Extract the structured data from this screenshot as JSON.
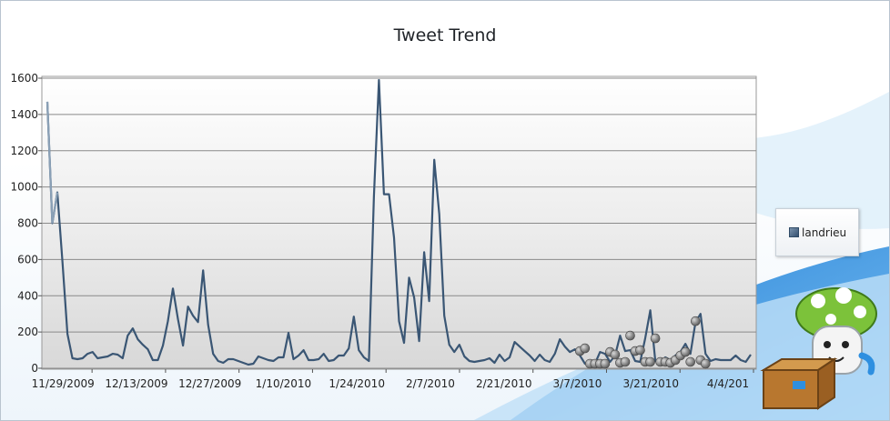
{
  "colors": {
    "line_light": "#8aa0b6",
    "line_dark": "#3a5674",
    "point_fill": "#808080",
    "plot_bg_top": "#ffffff",
    "plot_bg_bottom": "#d8d8d8",
    "grid": "#8a8a8a",
    "accent_blue": "#2e8fe0"
  },
  "icons": {
    "mascot": "mushroom-with-box-mascot-icon",
    "legend_swatch": "series-swatch-icon"
  },
  "chart_data": {
    "type": "line",
    "title": "Tweet Trend",
    "xlabel": "",
    "ylabel": "",
    "ylim": [
      0,
      1600
    ],
    "y_ticks": [
      0,
      200,
      400,
      600,
      800,
      1000,
      1200,
      1400,
      1600
    ],
    "x_tick_labels": [
      "11/29/2009",
      "12/13/2009",
      "12/27/2009",
      "1/10/2010",
      "1/24/2010",
      "2/7/2010",
      "2/21/2010",
      "3/7/2010",
      "3/21/2010",
      "4/4/201"
    ],
    "x_tick_days": [
      8,
      22,
      36,
      50,
      64,
      78,
      92,
      106,
      120,
      134
    ],
    "x_range_days": [
      0,
      134
    ],
    "grid": true,
    "legend_position": "right",
    "series": [
      {
        "name": "landrieu",
        "points": [
          [
            0,
            1470
          ],
          [
            1,
            800
          ],
          [
            2,
            970
          ],
          [
            3,
            590
          ],
          [
            4,
            190
          ],
          [
            5,
            55
          ],
          [
            6,
            50
          ],
          [
            7,
            55
          ],
          [
            8,
            80
          ],
          [
            9,
            90
          ],
          [
            10,
            55
          ],
          [
            11,
            60
          ],
          [
            12,
            65
          ],
          [
            13,
            80
          ],
          [
            14,
            75
          ],
          [
            15,
            55
          ],
          [
            16,
            180
          ],
          [
            17,
            220
          ],
          [
            18,
            160
          ],
          [
            19,
            130
          ],
          [
            20,
            105
          ],
          [
            21,
            45
          ],
          [
            22,
            45
          ],
          [
            23,
            125
          ],
          [
            24,
            260
          ],
          [
            25,
            440
          ],
          [
            26,
            270
          ],
          [
            27,
            125
          ],
          [
            28,
            340
          ],
          [
            29,
            290
          ],
          [
            30,
            255
          ],
          [
            31,
            540
          ],
          [
            32,
            240
          ],
          [
            33,
            80
          ],
          [
            34,
            40
          ],
          [
            35,
            30
          ],
          [
            36,
            50
          ],
          [
            37,
            50
          ],
          [
            38,
            40
          ],
          [
            39,
            30
          ],
          [
            40,
            20
          ],
          [
            41,
            25
          ],
          [
            42,
            65
          ],
          [
            43,
            55
          ],
          [
            44,
            45
          ],
          [
            45,
            40
          ],
          [
            46,
            60
          ],
          [
            47,
            60
          ],
          [
            48,
            195
          ],
          [
            49,
            50
          ],
          [
            50,
            70
          ],
          [
            51,
            100
          ],
          [
            52,
            45
          ],
          [
            53,
            45
          ],
          [
            54,
            50
          ],
          [
            55,
            80
          ],
          [
            56,
            40
          ],
          [
            57,
            45
          ],
          [
            58,
            70
          ],
          [
            59,
            70
          ],
          [
            60,
            110
          ],
          [
            61,
            285
          ],
          [
            62,
            100
          ],
          [
            63,
            60
          ],
          [
            64,
            40
          ],
          [
            65,
            950
          ],
          [
            66,
            1590
          ],
          [
            67,
            960
          ],
          [
            68,
            960
          ],
          [
            69,
            720
          ],
          [
            70,
            260
          ],
          [
            71,
            140
          ],
          [
            72,
            500
          ],
          [
            73,
            390
          ],
          [
            74,
            150
          ],
          [
            75,
            640
          ],
          [
            76,
            370
          ],
          [
            77,
            1150
          ],
          [
            78,
            850
          ],
          [
            79,
            290
          ],
          [
            80,
            130
          ],
          [
            81,
            90
          ],
          [
            82,
            130
          ],
          [
            83,
            65
          ],
          [
            84,
            40
          ],
          [
            85,
            35
          ],
          [
            86,
            40
          ],
          [
            87,
            45
          ],
          [
            88,
            55
          ],
          [
            89,
            30
          ],
          [
            90,
            75
          ],
          [
            91,
            40
          ],
          [
            92,
            60
          ],
          [
            93,
            145
          ],
          [
            94,
            120
          ],
          [
            95,
            95
          ],
          [
            96,
            70
          ],
          [
            97,
            40
          ],
          [
            98,
            75
          ],
          [
            99,
            45
          ],
          [
            100,
            35
          ],
          [
            101,
            80
          ],
          [
            102,
            160
          ],
          [
            103,
            120
          ],
          [
            104,
            90
          ],
          [
            105,
            105
          ],
          [
            106,
            70
          ],
          [
            107,
            25
          ],
          [
            108,
            25
          ],
          [
            109,
            25
          ],
          [
            110,
            90
          ],
          [
            111,
            80
          ],
          [
            112,
            35
          ],
          [
            113,
            70
          ],
          [
            114,
            180
          ],
          [
            115,
            95
          ],
          [
            116,
            100
          ],
          [
            117,
            40
          ],
          [
            118,
            35
          ],
          [
            119,
            165
          ],
          [
            120,
            320
          ],
          [
            121,
            40
          ],
          [
            122,
            35
          ],
          [
            123,
            60
          ],
          [
            124,
            45
          ],
          [
            125,
            70
          ],
          [
            126,
            90
          ],
          [
            127,
            135
          ],
          [
            128,
            80
          ],
          [
            129,
            255
          ],
          [
            130,
            300
          ],
          [
            131,
            80
          ],
          [
            132,
            40
          ],
          [
            133,
            50
          ],
          [
            134,
            45
          ],
          [
            135,
            45
          ],
          [
            136,
            45
          ],
          [
            137,
            70
          ],
          [
            138,
            45
          ],
          [
            139,
            35
          ],
          [
            140,
            75
          ]
        ]
      }
    ],
    "scatter_points": [
      [
        106,
        95
      ],
      [
        107,
        110
      ],
      [
        108,
        25
      ],
      [
        109,
        25
      ],
      [
        110,
        25
      ],
      [
        111,
        25
      ],
      [
        112,
        90
      ],
      [
        113,
        75
      ],
      [
        114,
        30
      ],
      [
        115,
        35
      ],
      [
        116,
        180
      ],
      [
        117,
        95
      ],
      [
        118,
        100
      ],
      [
        119,
        35
      ],
      [
        120,
        35
      ],
      [
        121,
        165
      ],
      [
        122,
        35
      ],
      [
        123,
        35
      ],
      [
        124,
        30
      ],
      [
        125,
        45
      ],
      [
        126,
        70
      ],
      [
        127,
        90
      ],
      [
        128,
        35
      ],
      [
        129,
        260
      ],
      [
        130,
        45
      ],
      [
        131,
        25
      ]
    ]
  }
}
